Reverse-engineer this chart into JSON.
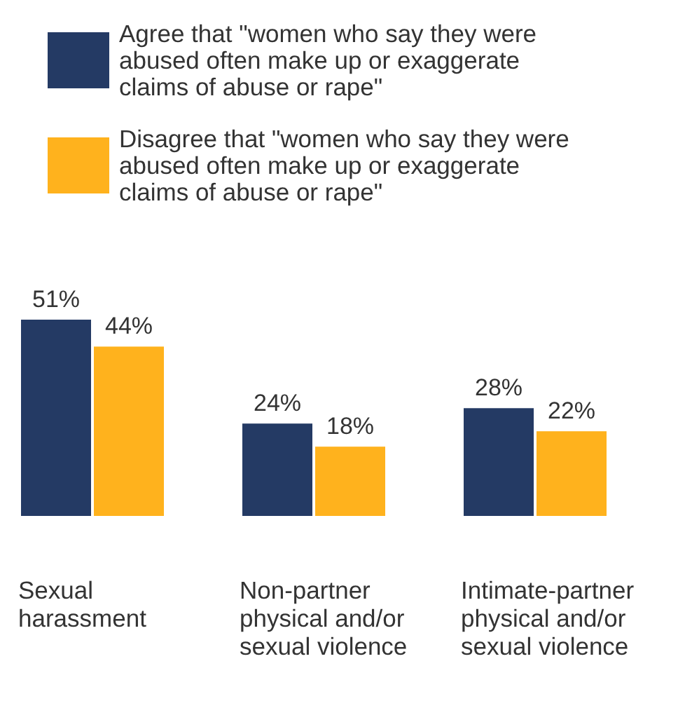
{
  "chart_data": {
    "type": "bar",
    "categories": [
      "Sexual harassment",
      "Non-partner physical and/or sexual violence",
      "Intimate-partner physical and/or sexual violence"
    ],
    "series": [
      {
        "name": "Agree that \"women who say they were abused often make up or exaggerate claims of abuse or rape\"",
        "color": "#243a64",
        "values": [
          51,
          24,
          28
        ],
        "value_labels": [
          "51%",
          "24%",
          "28%"
        ]
      },
      {
        "name": "Disagree that \"women who say they were abused often make up or exaggerate claims of abuse or rape\"",
        "color": "#ffb21d",
        "values": [
          44,
          18,
          22
        ],
        "value_labels": [
          "44%",
          "18%",
          "22%"
        ]
      }
    ],
    "legend": "top"
  }
}
